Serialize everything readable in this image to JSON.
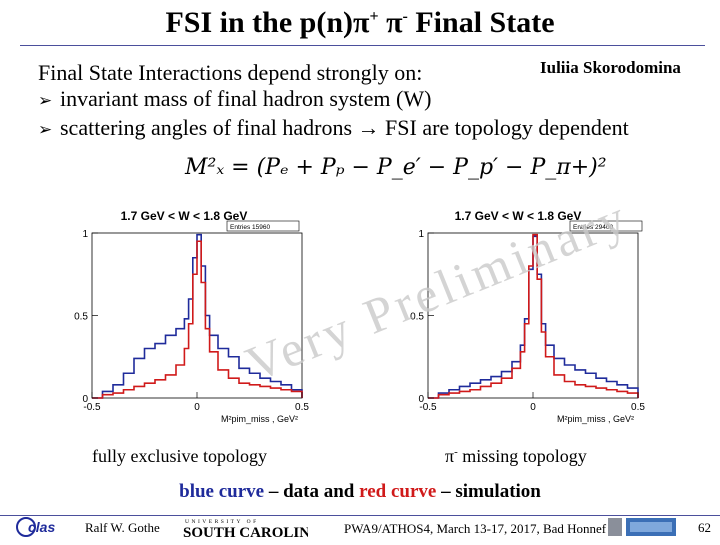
{
  "slide": {
    "title_main": "FSI in the p(n)π",
    "title_sup1": "+",
    "title_mid": " π",
    "title_sup2": "-",
    "title_end": " Final State",
    "author": "Iuliia Skorodomina",
    "intro": "Final State Interactions depend strongly on:",
    "bullets": [
      "invariant mass of final hadron system (W)",
      "scattering angles of final hadrons → FSI are topology dependent"
    ],
    "formula": "M²ₓ = (Pₑ + Pₚ − P_e′ − P_p′ − P_π+)²",
    "watermark": "Very Preliminary",
    "caption_left": "fully exclusive topology",
    "caption_right_sym": "π",
    "caption_right_sup": "-",
    "caption_right": " missing  topology",
    "legend_blue": "blue curve",
    "legend_mid": " – data and ",
    "legend_red": "red curve",
    "legend_end": " – simulation",
    "colors": {
      "data": "#1f2b9b",
      "simulation": "#d01a1a",
      "accent": "#4b4f9c"
    }
  },
  "footer": {
    "left_logo": "clas",
    "author": "Ralf  W. Gothe",
    "university_small": "UNIVERSITY OF",
    "university": "SOUTH CAROLINA",
    "conference": "PWA9/ATHOS4, March 13-17, 2017, Bad Honnef",
    "page": "62"
  },
  "chart_data": [
    {
      "type": "line",
      "title": "1.7 GeV < W < 1.8 GeV",
      "stats": "Entries  15960",
      "xlabel": "M²pim_miss , GeV²",
      "ylim": [
        0,
        1
      ],
      "xlim": [
        -0.5,
        0.5
      ],
      "xticks": [
        "-0.5",
        "0",
        "0.5"
      ],
      "yticks": [
        "0",
        "0.5",
        "1"
      ],
      "series": [
        {
          "color": "#1f2b9b",
          "x": [
            -0.5,
            -0.45,
            -0.4,
            -0.35,
            -0.3,
            -0.25,
            -0.2,
            -0.15,
            -0.1,
            -0.06,
            -0.04,
            -0.02,
            0,
            0.02,
            0.04,
            0.06,
            0.1,
            0.15,
            0.2,
            0.25,
            0.3,
            0.35,
            0.4,
            0.45,
            0.5
          ],
          "y": [
            0.0,
            0.04,
            0.08,
            0.15,
            0.24,
            0.3,
            0.33,
            0.38,
            0.42,
            0.48,
            0.6,
            0.85,
            0.99,
            0.8,
            0.5,
            0.38,
            0.3,
            0.25,
            0.18,
            0.15,
            0.12,
            0.1,
            0.08,
            0.05,
            0.0
          ]
        },
        {
          "color": "#d01a1a",
          "x": [
            -0.5,
            -0.45,
            -0.4,
            -0.35,
            -0.3,
            -0.25,
            -0.2,
            -0.15,
            -0.1,
            -0.06,
            -0.04,
            -0.02,
            0,
            0.02,
            0.04,
            0.06,
            0.1,
            0.15,
            0.2,
            0.25,
            0.3,
            0.35,
            0.4,
            0.45,
            0.5
          ],
          "y": [
            0.0,
            0.02,
            0.03,
            0.05,
            0.07,
            0.09,
            0.11,
            0.14,
            0.2,
            0.3,
            0.45,
            0.75,
            0.95,
            0.7,
            0.42,
            0.28,
            0.17,
            0.12,
            0.09,
            0.08,
            0.07,
            0.06,
            0.05,
            0.04,
            0.0
          ]
        }
      ]
    },
    {
      "type": "line",
      "title": "1.7 GeV < W < 1.8 GeV",
      "stats": "Entries  29400",
      "xlabel": "M²pim_miss , GeV²",
      "ylim": [
        0,
        1
      ],
      "xlim": [
        -0.5,
        0.5
      ],
      "xticks": [
        "-0.5",
        "0",
        "0.5"
      ],
      "yticks": [
        "0",
        "0.5",
        "1"
      ],
      "series": [
        {
          "color": "#1f2b9b",
          "x": [
            -0.5,
            -0.45,
            -0.4,
            -0.35,
            -0.3,
            -0.25,
            -0.2,
            -0.15,
            -0.1,
            -0.06,
            -0.04,
            -0.02,
            0,
            0.02,
            0.04,
            0.06,
            0.1,
            0.15,
            0.2,
            0.25,
            0.3,
            0.35,
            0.4,
            0.45,
            0.5
          ],
          "y": [
            0.0,
            0.03,
            0.05,
            0.07,
            0.09,
            0.11,
            0.13,
            0.16,
            0.22,
            0.32,
            0.48,
            0.78,
            0.98,
            0.75,
            0.45,
            0.32,
            0.24,
            0.2,
            0.17,
            0.15,
            0.12,
            0.1,
            0.08,
            0.06,
            0.0
          ]
        },
        {
          "color": "#d01a1a",
          "x": [
            -0.5,
            -0.45,
            -0.4,
            -0.35,
            -0.3,
            -0.25,
            -0.2,
            -0.15,
            -0.1,
            -0.06,
            -0.04,
            -0.02,
            0,
            0.02,
            0.04,
            0.06,
            0.1,
            0.15,
            0.2,
            0.25,
            0.3,
            0.35,
            0.4,
            0.45,
            0.5
          ],
          "y": [
            0.0,
            0.02,
            0.03,
            0.04,
            0.05,
            0.07,
            0.09,
            0.12,
            0.18,
            0.28,
            0.45,
            0.8,
            0.99,
            0.72,
            0.4,
            0.25,
            0.14,
            0.1,
            0.08,
            0.07,
            0.06,
            0.05,
            0.04,
            0.03,
            0.0
          ]
        }
      ]
    }
  ]
}
